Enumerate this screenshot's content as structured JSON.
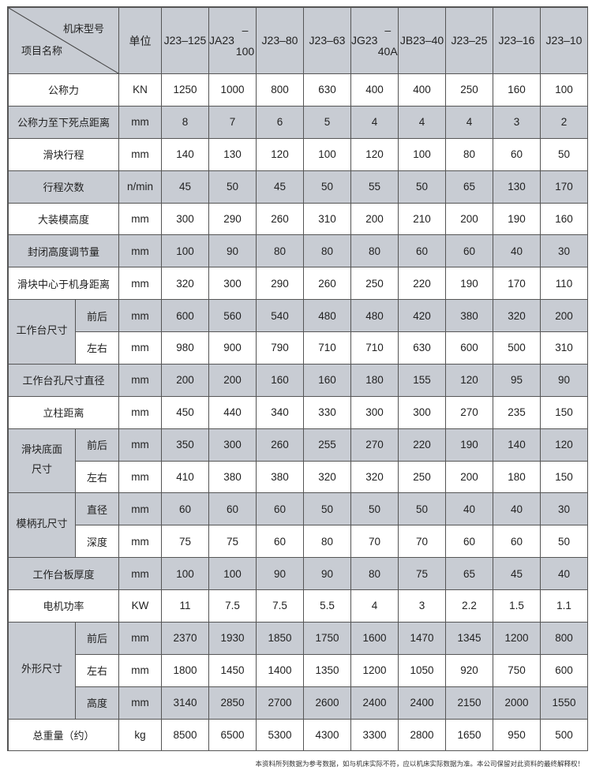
{
  "header": {
    "model_label": "机床型号",
    "item_label": "项目名称",
    "unit_label": "单位",
    "models": [
      {
        "line1": "J23",
        "line2": "–125"
      },
      {
        "line1": "JA23",
        "line2": "–100"
      },
      {
        "line1": "J23",
        "line2": "–80"
      },
      {
        "line1": "J23",
        "line2": "–63"
      },
      {
        "line1": "JG23",
        "line2": "–40A"
      },
      {
        "line1": "JB23",
        "line2": "–40"
      },
      {
        "line1": "J23",
        "line2": "–25"
      },
      {
        "line1": "J23",
        "line2": "–16"
      },
      {
        "line1": "J23",
        "line2": "–10"
      }
    ]
  },
  "groups": [
    {
      "label": "公称力",
      "shaded": false,
      "rows": [
        {
          "sub": "",
          "unit": "KN",
          "shaded": false,
          "values": [
            "1250",
            "1000",
            "800",
            "630",
            "400",
            "400",
            "250",
            "160",
            "100"
          ]
        }
      ]
    },
    {
      "label": "公称力至下死点距离",
      "shaded": true,
      "rows": [
        {
          "sub": "",
          "unit": "mm",
          "shaded": true,
          "values": [
            "8",
            "7",
            "6",
            "5",
            "4",
            "4",
            "4",
            "3",
            "2"
          ]
        }
      ]
    },
    {
      "label": "滑块行程",
      "shaded": false,
      "rows": [
        {
          "sub": "",
          "unit": "mm",
          "shaded": false,
          "values": [
            "140",
            "130",
            "120",
            "100",
            "120",
            "100",
            "80",
            "60",
            "50"
          ]
        }
      ]
    },
    {
      "label": "行程次数",
      "shaded": true,
      "rows": [
        {
          "sub": "",
          "unit": "n/min",
          "shaded": true,
          "values": [
            "45",
            "50",
            "45",
            "50",
            "55",
            "50",
            "65",
            "130",
            "170"
          ]
        }
      ]
    },
    {
      "label": "大装模高度",
      "shaded": false,
      "rows": [
        {
          "sub": "",
          "unit": "mm",
          "shaded": false,
          "values": [
            "300",
            "290",
            "260",
            "310",
            "200",
            "210",
            "200",
            "190",
            "160"
          ]
        }
      ]
    },
    {
      "label": "封闭高度调节量",
      "shaded": true,
      "rows": [
        {
          "sub": "",
          "unit": "mm",
          "shaded": true,
          "values": [
            "100",
            "90",
            "80",
            "80",
            "80",
            "60",
            "60",
            "40",
            "30"
          ]
        }
      ]
    },
    {
      "label": "滑块中心于机身距离",
      "shaded": false,
      "rows": [
        {
          "sub": "",
          "unit": "mm",
          "shaded": false,
          "values": [
            "320",
            "300",
            "290",
            "260",
            "250",
            "220",
            "190",
            "170",
            "110"
          ]
        }
      ]
    },
    {
      "label": "工作台尺寸",
      "shaded": true,
      "rows": [
        {
          "sub": "前后",
          "unit": "mm",
          "shaded": true,
          "values": [
            "600",
            "560",
            "540",
            "480",
            "480",
            "420",
            "380",
            "320",
            "200"
          ]
        },
        {
          "sub": "左右",
          "unit": "mm",
          "shaded": false,
          "values": [
            "980",
            "900",
            "790",
            "710",
            "710",
            "630",
            "600",
            "500",
            "310"
          ]
        }
      ]
    },
    {
      "label": "工作台孔尺寸直径",
      "shaded": true,
      "rows": [
        {
          "sub": "",
          "unit": "mm",
          "shaded": true,
          "values": [
            "200",
            "200",
            "160",
            "160",
            "180",
            "155",
            "120",
            "95",
            "90"
          ]
        }
      ]
    },
    {
      "label": "立柱距离",
      "shaded": false,
      "rows": [
        {
          "sub": "",
          "unit": "mm",
          "shaded": false,
          "values": [
            "450",
            "440",
            "340",
            "330",
            "300",
            "300",
            "270",
            "235",
            "150"
          ]
        }
      ]
    },
    {
      "label": "滑块底面\n尺寸",
      "shaded": true,
      "rows": [
        {
          "sub": "前后",
          "unit": "mm",
          "shaded": true,
          "values": [
            "350",
            "300",
            "260",
            "255",
            "270",
            "220",
            "190",
            "140",
            "120"
          ]
        },
        {
          "sub": "左右",
          "unit": "mm",
          "shaded": false,
          "values": [
            "410",
            "380",
            "380",
            "320",
            "320",
            "250",
            "200",
            "180",
            "150"
          ]
        }
      ]
    },
    {
      "label": "模柄孔尺寸",
      "shaded": true,
      "rows": [
        {
          "sub": "直径",
          "unit": "mm",
          "shaded": true,
          "values": [
            "60",
            "60",
            "60",
            "50",
            "50",
            "50",
            "40",
            "40",
            "30"
          ]
        },
        {
          "sub": "深度",
          "unit": "mm",
          "shaded": false,
          "values": [
            "75",
            "75",
            "60",
            "80",
            "70",
            "70",
            "60",
            "60",
            "50"
          ]
        }
      ]
    },
    {
      "label": "工作台板厚度",
      "shaded": true,
      "rows": [
        {
          "sub": "",
          "unit": "mm",
          "shaded": true,
          "values": [
            "100",
            "100",
            "90",
            "90",
            "80",
            "75",
            "65",
            "45",
            "40"
          ]
        }
      ]
    },
    {
      "label": "电机功率",
      "shaded": false,
      "rows": [
        {
          "sub": "",
          "unit": "KW",
          "shaded": false,
          "values": [
            "11",
            "7.5",
            "7.5",
            "5.5",
            "4",
            "3",
            "2.2",
            "1.5",
            "1.1"
          ]
        }
      ]
    },
    {
      "label": "外形尺寸",
      "shaded": true,
      "rows": [
        {
          "sub": "前后",
          "unit": "mm",
          "shaded": true,
          "values": [
            "2370",
            "1930",
            "1850",
            "1750",
            "1600",
            "1470",
            "1345",
            "1200",
            "800"
          ]
        },
        {
          "sub": "左右",
          "unit": "mm",
          "shaded": false,
          "values": [
            "1800",
            "1450",
            "1400",
            "1350",
            "1200",
            "1050",
            "920",
            "750",
            "600"
          ]
        },
        {
          "sub": "高度",
          "unit": "mm",
          "shaded": true,
          "values": [
            "3140",
            "2850",
            "2700",
            "2600",
            "2400",
            "2400",
            "2150",
            "2000",
            "1550"
          ]
        }
      ]
    },
    {
      "label": "总重量（约）",
      "shaded": false,
      "rows": [
        {
          "sub": "",
          "unit": "kg",
          "shaded": false,
          "values": [
            "8500",
            "6500",
            "5300",
            "4300",
            "3300",
            "2800",
            "1650",
            "950",
            "500"
          ]
        }
      ]
    }
  ],
  "footer_note": "本资料所列数据为参考数据，如与机床实际不符，应以机床实际数据为准。本公司保留对此资料的最终解释权！"
}
